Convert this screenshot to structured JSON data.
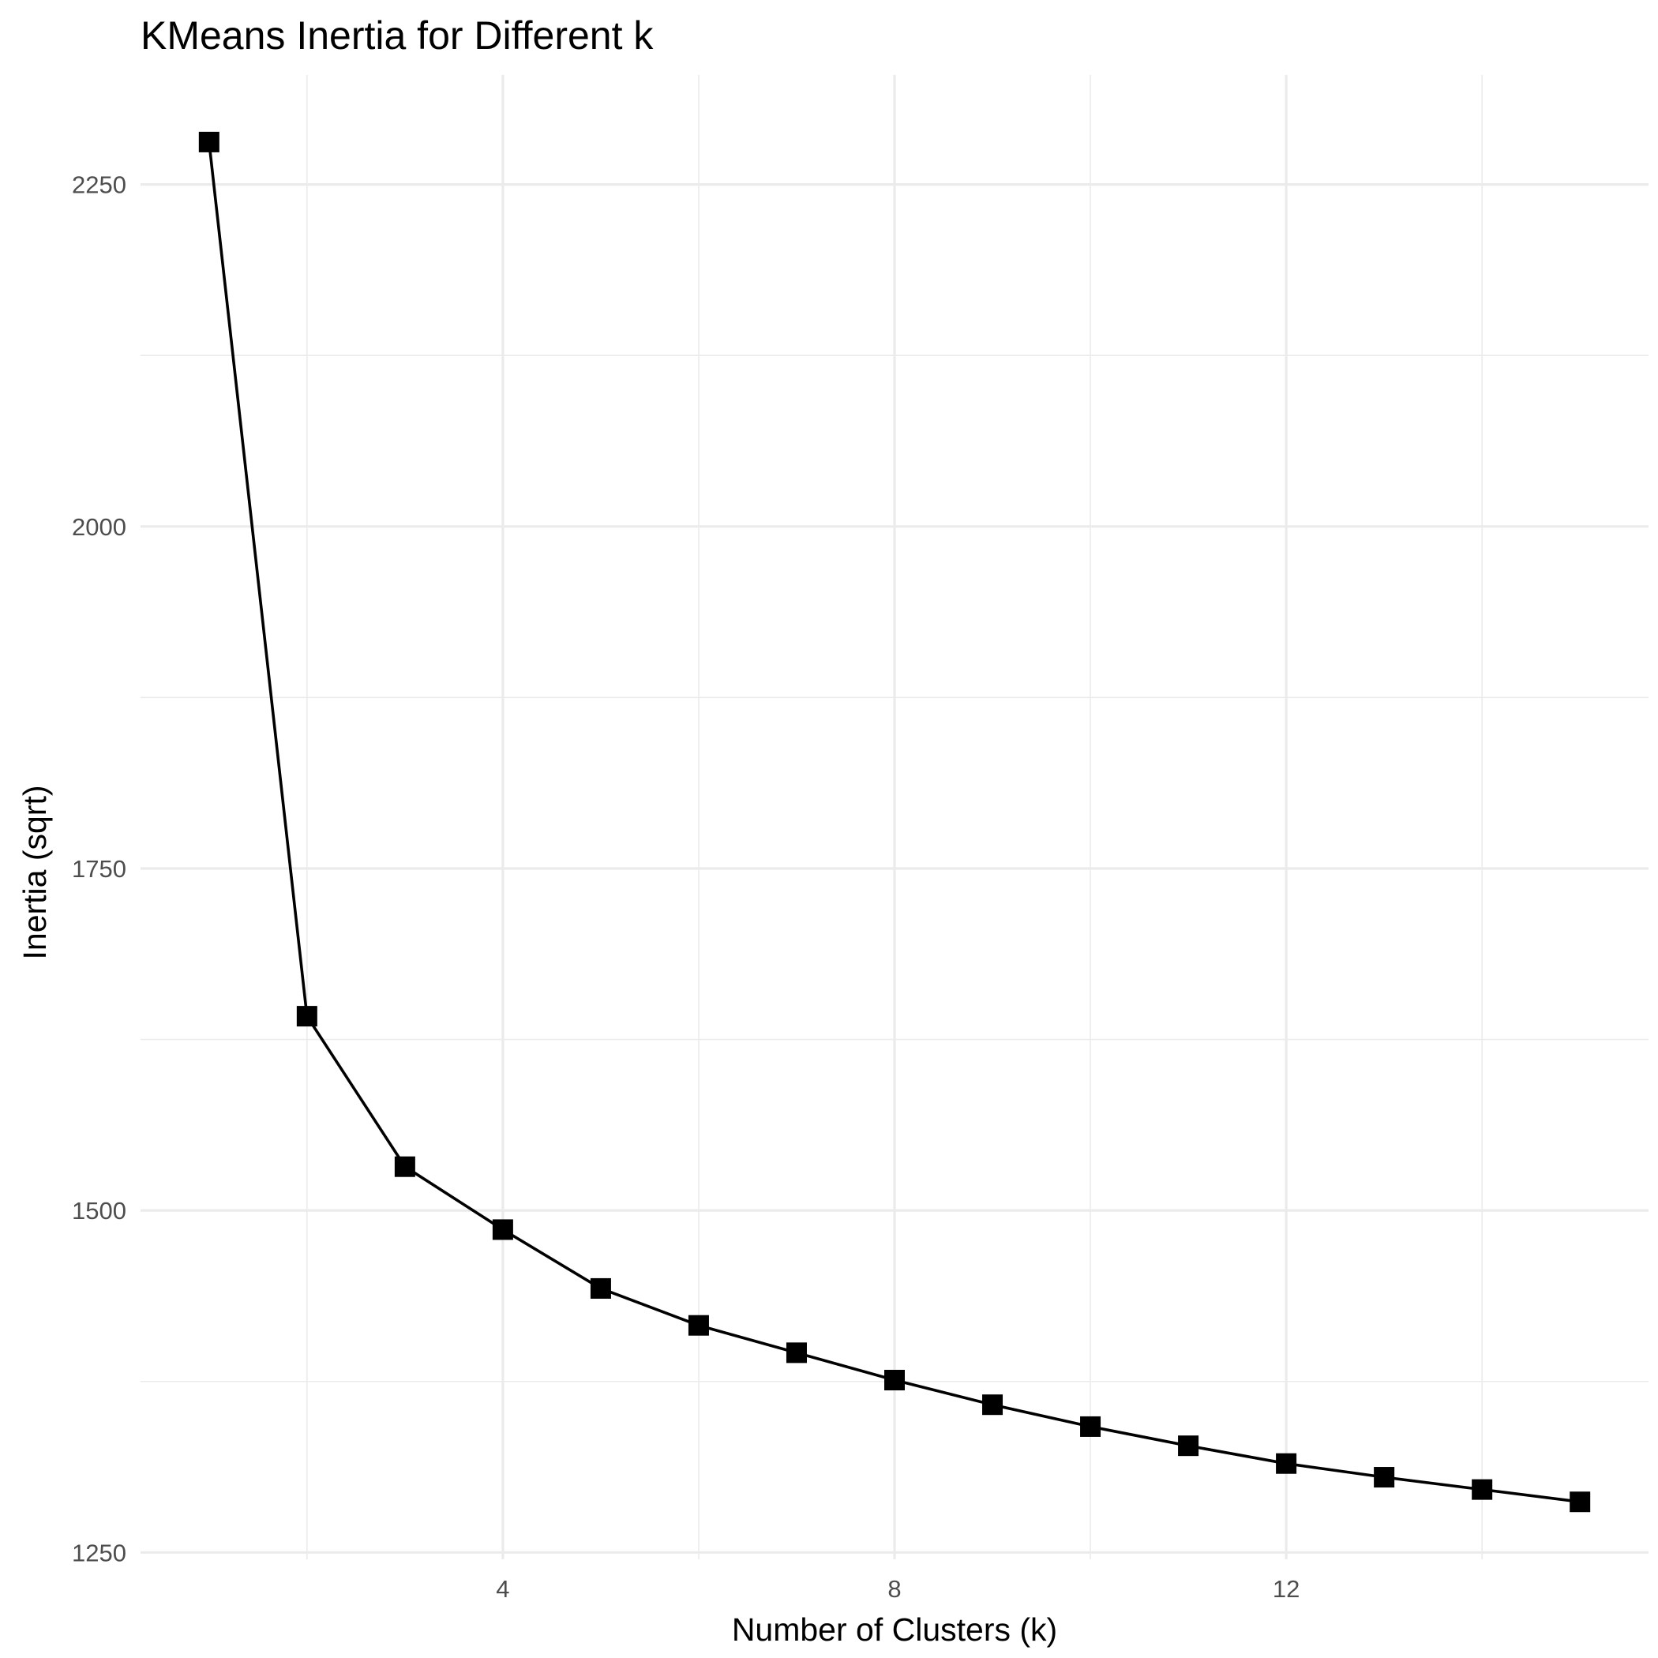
{
  "chart_data": {
    "type": "line",
    "title": "KMeans Inertia for Different k",
    "xlabel": "Number of Clusters (k)",
    "ylabel": "Inertia (sqrt)",
    "x": [
      1,
      2,
      3,
      4,
      5,
      6,
      7,
      8,
      9,
      10,
      11,
      12,
      13,
      14,
      15
    ],
    "y": [
      2281,
      1642,
      1532,
      1486,
      1443,
      1416,
      1396,
      1376,
      1358,
      1342,
      1328,
      1315,
      1305,
      1296,
      1287
    ],
    "xlim": [
      0.3,
      15.7
    ],
    "ylim": [
      1245,
      2330
    ],
    "x_ticks": [
      4,
      8,
      12
    ],
    "x_tick_labels": [
      "4",
      "8",
      "12"
    ],
    "x_minor_ticks": [
      2,
      6,
      10,
      14
    ],
    "y_ticks": [
      1250,
      1500,
      1750,
      2000,
      2250
    ],
    "y_tick_labels": [
      "1250",
      "1500",
      "1750",
      "2000",
      "2250"
    ],
    "y_minor_ticks": [
      1375,
      1625,
      1875,
      2125
    ],
    "y_scale": "sqrt",
    "grid": true,
    "legend": "none",
    "line_color": "#000000",
    "marker": "square",
    "marker_color": "#000000",
    "grid_color": "#ebebeb",
    "background": "#ffffff"
  }
}
